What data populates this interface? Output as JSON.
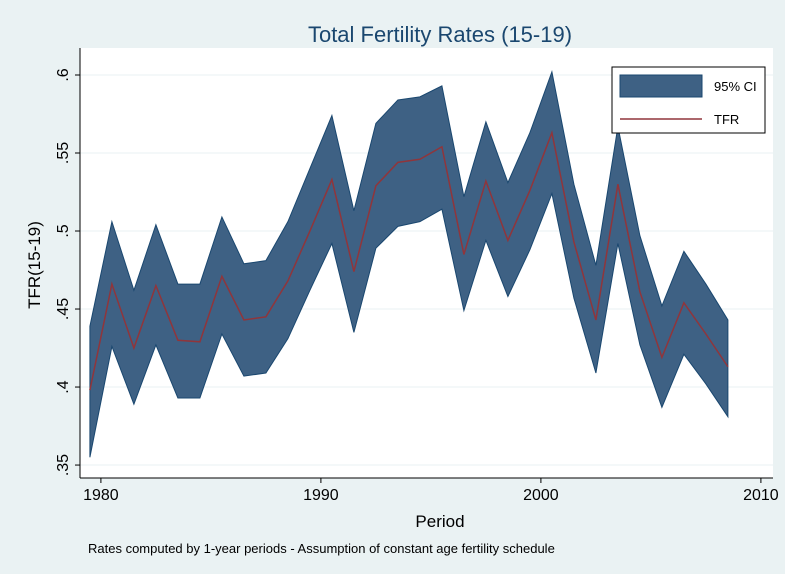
{
  "chart_data": {
    "type": "band-line",
    "title": "Total Fertility Rates (15-19)",
    "x_label": "Period",
    "y_label": "TFR(15-19)",
    "note": "Rates computed by 1-year periods - Assumption of constant age fertility schedule",
    "x": [
      1979.5,
      1980.5,
      1981.5,
      1982.5,
      1983.5,
      1984.5,
      1985.5,
      1986.5,
      1987.5,
      1988.5,
      1989.5,
      1990.5,
      1991.5,
      1992.5,
      1993.5,
      1994.5,
      1995.5,
      1996.5,
      1997.5,
      1998.5,
      1999.5,
      2000.5,
      2001.5,
      2002.5,
      2003.5,
      2004.5,
      2005.5,
      2006.5,
      2007.5,
      2008.5
    ],
    "series": [
      {
        "name": "95% CI",
        "color": "#3e6184",
        "upper": [
          0.439,
          0.506,
          0.462,
          0.504,
          0.466,
          0.466,
          0.509,
          0.479,
          0.481,
          0.506,
          0.54,
          0.574,
          0.513,
          0.569,
          0.584,
          0.586,
          0.593,
          0.522,
          0.57,
          0.531,
          0.563,
          0.602,
          0.53,
          0.478,
          0.567,
          0.497,
          0.452,
          0.487,
          0.466,
          0.443
        ],
        "lower": [
          0.355,
          0.426,
          0.389,
          0.427,
          0.393,
          0.393,
          0.434,
          0.407,
          0.409,
          0.431,
          0.462,
          0.492,
          0.435,
          0.489,
          0.503,
          0.506,
          0.514,
          0.449,
          0.494,
          0.458,
          0.488,
          0.524,
          0.457,
          0.409,
          0.492,
          0.427,
          0.387,
          0.421,
          0.402,
          0.381
        ]
      },
      {
        "name": "TFR",
        "color": "#90353b",
        "values": [
          0.398,
          0.466,
          0.425,
          0.465,
          0.43,
          0.429,
          0.471,
          0.443,
          0.445,
          0.468,
          0.5,
          0.533,
          0.474,
          0.529,
          0.544,
          0.546,
          0.554,
          0.485,
          0.532,
          0.494,
          0.526,
          0.563,
          0.493,
          0.443,
          0.53,
          0.461,
          0.419,
          0.454,
          0.434,
          0.413
        ]
      }
    ],
    "xlim": [
      1979.05,
      2010.55
    ],
    "xticks": [
      1980,
      1990,
      2000,
      2010
    ],
    "ylim": [
      0.3417,
      0.6173
    ],
    "yticks": [
      {
        "value": 0.35,
        "label": ".35"
      },
      {
        "value": 0.4,
        "label": ".4"
      },
      {
        "value": 0.45,
        "label": ".45"
      },
      {
        "value": 0.5,
        "label": ".5"
      },
      {
        "value": 0.55,
        "label": ".55"
      },
      {
        "value": 0.6,
        "label": ".6"
      }
    ],
    "grid": true,
    "legend": "top-right"
  }
}
